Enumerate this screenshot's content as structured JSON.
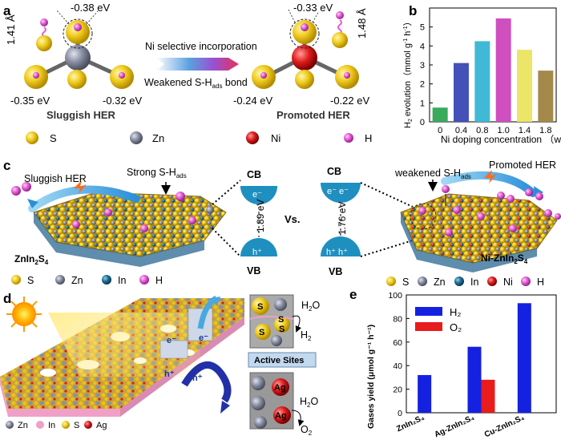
{
  "panel_labels": {
    "a": "a",
    "b": "b",
    "c": "c",
    "d": "d",
    "e": "e"
  },
  "panel_a": {
    "left_top_energy": "-0.38 eV",
    "left_bond_length": "1.41 Å",
    "left_bl_energy": "-0.35 eV",
    "left_br_energy": "-0.32 eV",
    "left_caption": "Sluggish HER",
    "arrow_top": "Ni selective incorporation",
    "arrow_bottom": "Weakened S-H",
    "arrow_bottom_sub": "ads",
    "arrow_bottom_tail": " bond",
    "right_top_energy": "-0.33 eV",
    "right_bond_length": "1.48 Å",
    "right_bl_energy": "-0.24 eV",
    "right_br_energy": "-0.22 eV",
    "right_caption": "Promoted HER",
    "legend": [
      "S",
      "Zn",
      "Ni",
      "H"
    ],
    "colors": {
      "S": "#e8c21a",
      "Zn": "#7d8296",
      "Ni": "#d61e1e",
      "H": "#e75fd6"
    }
  },
  "panel_b": {
    "ylabel_main": "H",
    "ylabel_sub": "2",
    "ylabel_rest": " evolution（mmol g",
    "ylabel_sup1": "-1",
    "ylabel_mid": " h",
    "ylabel_sup2": "-1",
    "ylabel_end": "）",
    "xlabel": "Ni doping concentration （wt%)",
    "tick_labels_y": [
      "0",
      "1",
      "2",
      "3",
      "4",
      "5"
    ]
  },
  "chart_data": {
    "type": "bar",
    "categories": [
      "0",
      "0.4",
      "0.8",
      "1.0",
      "1.4",
      "1.8"
    ],
    "values": [
      0.75,
      3.1,
      4.25,
      5.45,
      3.8,
      2.7
    ],
    "ylim": [
      0,
      6
    ],
    "colors": [
      "#3aaa5c",
      "#4351b8",
      "#3fb9d6",
      "#cf4fbf",
      "#ece568",
      "#a48a4a"
    ]
  },
  "panel_c": {
    "left_label1": "Sluggish HER",
    "left_label2": "Strong S-H",
    "left_label2_sub": "ads",
    "left_material": "ZnIn",
    "left_material_sub1": "2",
    "left_material_s": "S",
    "left_material_sub2": "4",
    "cb": "CB",
    "vb": "VB",
    "left_gap": "1.89 eV",
    "electron": "e⁻",
    "hole": "h⁺",
    "vs": "Vs.",
    "right_gap": "1.76 eV",
    "right_electrons": "e⁻ e⁻",
    "right_holes": "h⁺ h⁺",
    "right_label1": "weakened S-H",
    "right_label1_sub": "ads",
    "right_label2": "Promoted HER",
    "right_material": "Ni-ZnIn",
    "right_material_sub1": "2",
    "right_material_s": "S",
    "right_material_sub2": "4",
    "legend_left": [
      "S",
      "Zn",
      "In",
      "H"
    ],
    "legend_right": [
      "S",
      "Zn",
      "In",
      "Ni",
      "H"
    ],
    "colors": {
      "S": "#e8c21a",
      "Zn": "#8a8fa3",
      "In": "#1a5c8a",
      "Ni": "#d61e1e",
      "H": "#e75fd6"
    }
  },
  "panel_d": {
    "e_label": "e⁻",
    "h_label": "h⁺",
    "s_label": "S",
    "h2o_top": "H",
    "h2o_top_sub": "2",
    "h2o_top_o": "O",
    "h2_label": "H",
    "h2_sub": "2",
    "active_sites": "Active Sites",
    "ag_label": "Ag",
    "h2o_bottom": "H",
    "h2o_bottom_sub": "2",
    "h2o_bottom_o": "O",
    "o2_label": "O",
    "o2_sub": "2",
    "legend": [
      "Zn",
      "In",
      "S",
      "Ag"
    ],
    "colors": {
      "Zn": "#8a8fa3",
      "In": "#f0a0c8",
      "S": "#e8c21a",
      "Ag": "#d61e1e"
    }
  },
  "panel_e": {
    "ylabel": "Gases yield (μmol g⁻¹ h⁻¹)",
    "legend": [
      "H₂",
      "O₂"
    ],
    "tick_labels_y": [
      "0",
      "20",
      "40",
      "60",
      "80",
      "100"
    ],
    "cat_labels": [
      "ZnIn₂S₄",
      "Ag-ZnIn₂S₄",
      "Cu-ZnIn₂S₄"
    ]
  },
  "chart_data_e": {
    "type": "bar",
    "categories": [
      "ZnIn₂S₄",
      "Ag-ZnIn₂S₄",
      "Cu-ZnIn₂S₄"
    ],
    "series": [
      {
        "name": "H₂",
        "values": [
          32,
          56,
          93
        ],
        "color": "#1421e0"
      },
      {
        "name": "O₂",
        "values": [
          0,
          28,
          0
        ],
        "color": "#e81c1c"
      }
    ],
    "ylim": [
      0,
      100
    ]
  }
}
